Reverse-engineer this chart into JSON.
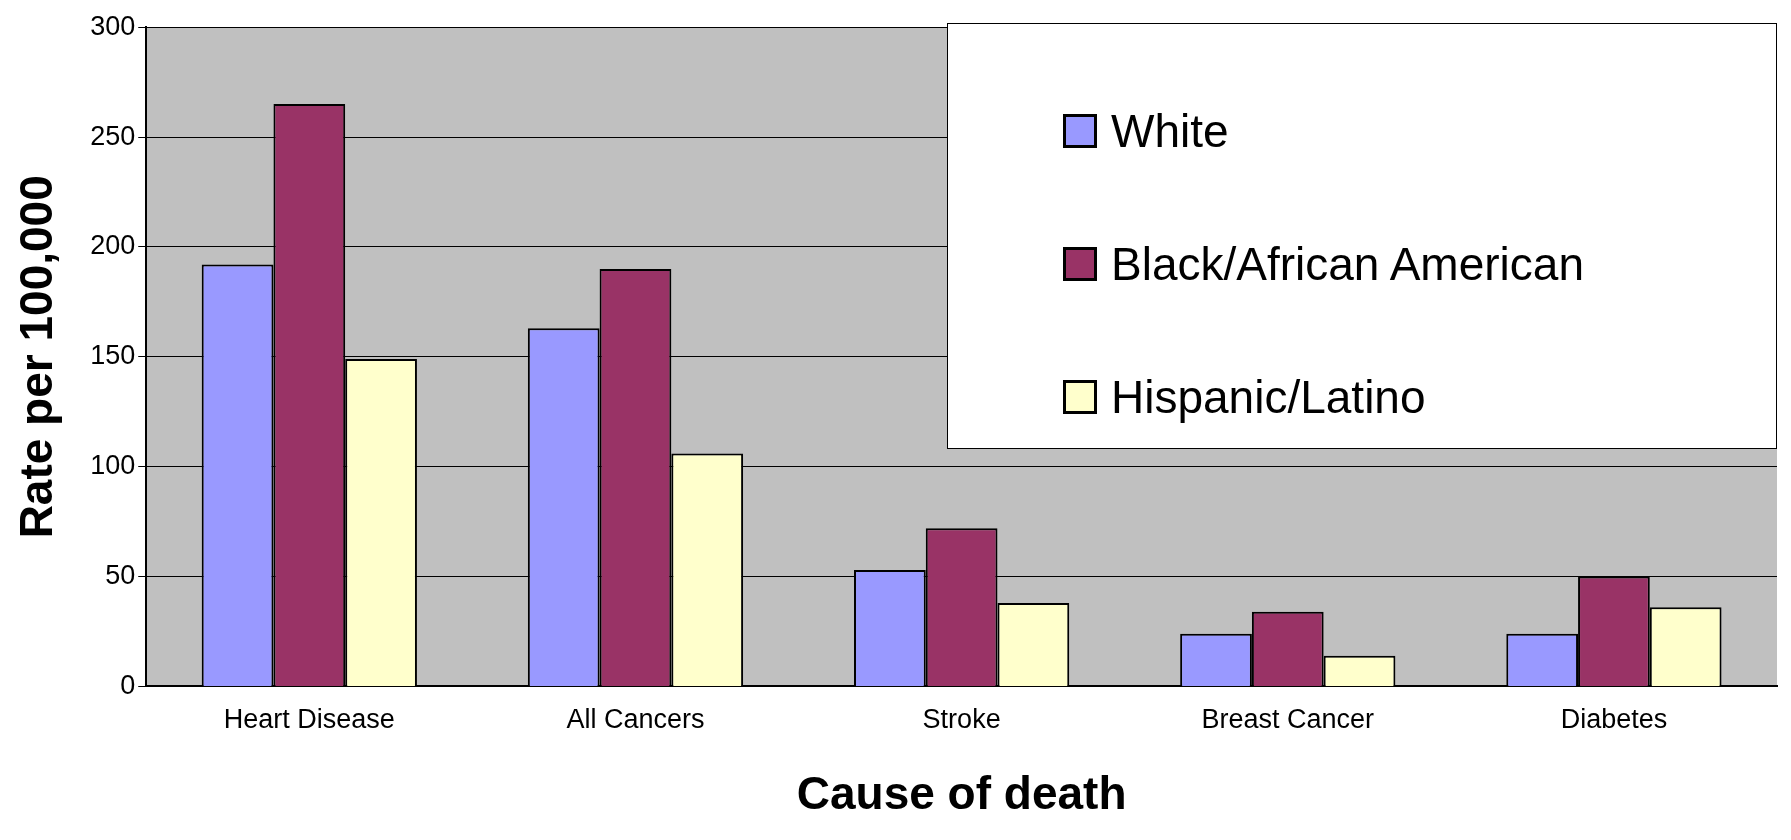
{
  "chart_data": {
    "type": "bar",
    "xlabel": "Cause of death",
    "ylabel": "Rate per 100,000",
    "categories": [
      "Heart Disease",
      "All Cancers",
      "Stroke",
      "Breast Cancer",
      "Diabetes"
    ],
    "series": [
      {
        "name": "White",
        "color": "#9999ff",
        "values": [
          192,
          163,
          53,
          24,
          24
        ]
      },
      {
        "name": "Black/African American",
        "color": "#993366",
        "values": [
          265,
          190,
          72,
          34,
          50
        ]
      },
      {
        "name": "Hispanic/Latino",
        "color": "#ffffcc",
        "values": [
          149,
          106,
          38,
          14,
          36
        ]
      }
    ],
    "ylim": [
      0,
      300
    ],
    "yticks": [
      0,
      50,
      100,
      150,
      200,
      250,
      300
    ],
    "grid": "y",
    "legend": "top right"
  }
}
